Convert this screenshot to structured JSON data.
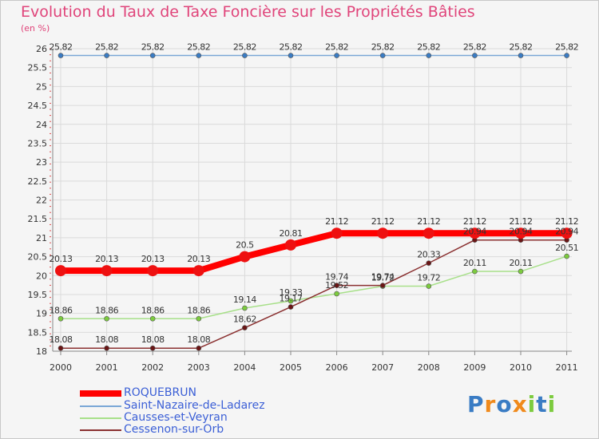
{
  "title": "Evolution du Taux de Taxe Foncière sur les Propriétés Bâties",
  "unit_label": "(en %)",
  "colors": {
    "title": "#e0447a",
    "legend_text": "#3b5fd6",
    "grid": "#dadada",
    "background": "#f5f5f5"
  },
  "chart_data": {
    "type": "line",
    "title": "Evolution du Taux de Taxe Foncière sur les Propriétés Bâties",
    "ylabel": "(en %)",
    "xlabel": "",
    "categories": [
      "2000",
      "2001",
      "2002",
      "2003",
      "2004",
      "2005",
      "2006",
      "2007",
      "2008",
      "2009",
      "2010",
      "2011"
    ],
    "ylim": [
      18,
      26
    ],
    "yticks": [
      "18",
      "18.5",
      "19",
      "19.5",
      "20",
      "20.5",
      "21",
      "21.5",
      "22",
      "22.5",
      "23",
      "23.5",
      "24",
      "24.5",
      "25",
      "25.5",
      "26"
    ],
    "grid": true,
    "series": [
      {
        "name": "ROQUEBRUN",
        "color": "#ff0000",
        "marker_color": "#ee1111",
        "values": [
          20.13,
          20.13,
          20.13,
          20.13,
          20.5,
          20.81,
          21.12,
          21.12,
          21.12,
          21.12,
          21.12,
          21.12
        ],
        "labels": [
          "20.13",
          "20.13",
          "20.13",
          "20.13",
          "20.5",
          "20.81",
          "21.12",
          "21.12",
          "21.12",
          "21.12",
          "21.12",
          "21.12"
        ]
      },
      {
        "name": "Saint-Nazaire-de-Ladarez",
        "color": "#7aa7d6",
        "marker_color": "#3a7cc4",
        "values": [
          25.82,
          25.82,
          25.82,
          25.82,
          25.82,
          25.82,
          25.82,
          25.82,
          25.82,
          25.82,
          25.82,
          25.82
        ],
        "labels": [
          "25.82",
          "25.82",
          "25.82",
          "25.82",
          "25.82",
          "25.82",
          "25.82",
          "25.82",
          "25.82",
          "25.82",
          "25.82",
          "25.82"
        ]
      },
      {
        "name": "Causses-et-Veyran",
        "color": "#a8e08a",
        "marker_color": "#7ccb3e",
        "values": [
          18.86,
          18.86,
          18.86,
          18.86,
          19.14,
          19.33,
          19.52,
          19.72,
          19.72,
          20.11,
          20.11,
          20.51
        ],
        "labels": [
          "18.86",
          "18.86",
          "18.86",
          "18.86",
          "19.14",
          "19.33",
          "19.52",
          "19.72",
          "19.72",
          "20.11",
          "20.11",
          "20.51"
        ]
      },
      {
        "name": "Cessenon-sur-Orb",
        "color": "#8a3030",
        "marker_color": "#6a1515",
        "values": [
          18.08,
          18.08,
          18.08,
          18.08,
          18.62,
          19.17,
          19.74,
          19.74,
          20.33,
          20.94,
          20.94,
          20.94
        ],
        "labels": [
          "18.08",
          "18.08",
          "18.08",
          "18.08",
          "18.62",
          "19.17",
          "19.74",
          "19.74",
          "20.33",
          "20.94",
          "20.94",
          "20.94"
        ]
      }
    ]
  },
  "legend": [
    "ROQUEBRUN",
    "Saint-Nazaire-de-Ladarez",
    "Causses-et-Veyran",
    "Cessenon-sur-Orb"
  ],
  "logo": {
    "letters": [
      "P",
      "r",
      "o",
      "x",
      "i",
      "t",
      "i"
    ],
    "colors": [
      "#3a7cc4",
      "#f08a1c",
      "#3a7cc4",
      "#f08a1c",
      "#7ccb3e",
      "#3a7cc4",
      "#7ccb3e"
    ]
  }
}
